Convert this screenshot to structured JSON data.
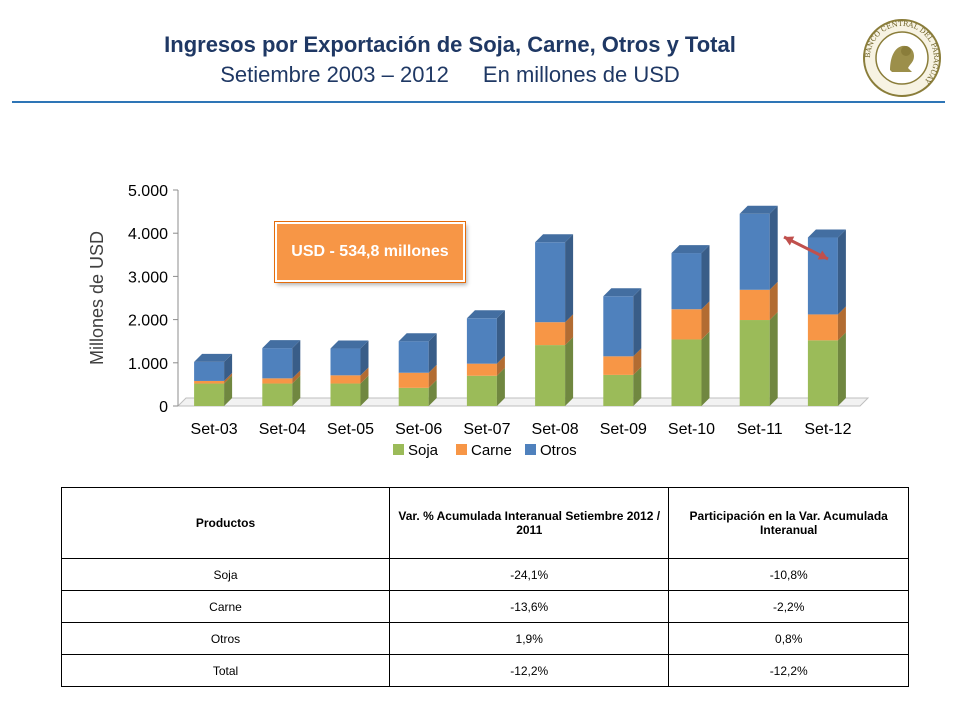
{
  "header": {
    "title": "Ingresos por Exportación de Soja, Carne, Otros y Total",
    "subtitle_left": "Setiembre 2003 – 2012",
    "subtitle_right": "En millones de USD",
    "seal_text": "BANCO CENTRAL DEL PARAGUAY"
  },
  "callout": {
    "text": "USD - 534,8 millones"
  },
  "colors": {
    "soja": "#9bbb59",
    "carne": "#f79646",
    "otros": "#4f81bd",
    "title": "#1f3864",
    "arrow": "#c0504d"
  },
  "chart_data": {
    "type": "bar",
    "stacked": true,
    "ylabel": "Millones de USD",
    "ylim": [
      0,
      5000
    ],
    "yticks": [
      0,
      1000,
      2000,
      3000,
      4000,
      5000
    ],
    "ytick_labels": [
      "0",
      "1.000",
      "2.000",
      "3.000",
      "4.000",
      "5.000"
    ],
    "categories": [
      "Set-03",
      "Set-04",
      "Set-05",
      "Set-06",
      "Set-07",
      "Set-08",
      "Set-09",
      "Set-10",
      "Set-11",
      "Set-12"
    ],
    "series": [
      {
        "name": "Soja",
        "values": [
          520,
          520,
          520,
          420,
          700,
          1410,
          720,
          1540,
          1990,
          1520
        ]
      },
      {
        "name": "Carne",
        "values": [
          60,
          120,
          190,
          350,
          280,
          530,
          430,
          700,
          700,
          600
        ]
      },
      {
        "name": "Otros",
        "values": [
          440,
          700,
          620,
          730,
          1050,
          1850,
          1390,
          1300,
          1760,
          1780
        ]
      }
    ],
    "legend_position": "bottom"
  },
  "table": {
    "headers": [
      "Productos",
      "Var. % Acumulada Interanual Setiembre 2012 / 2011",
      "Participación en la Var. Acumulada Interanual"
    ],
    "rows": [
      {
        "producto": "Soja",
        "var": "-24,1%",
        "part": "-10,8%"
      },
      {
        "producto": "Carne",
        "var": "-13,6%",
        "part": "-2,2%"
      },
      {
        "producto": "Otros",
        "var": "1,9%",
        "part": "0,8%"
      },
      {
        "producto": "Total",
        "var": "-12,2%",
        "part": "-12,2%"
      }
    ]
  }
}
